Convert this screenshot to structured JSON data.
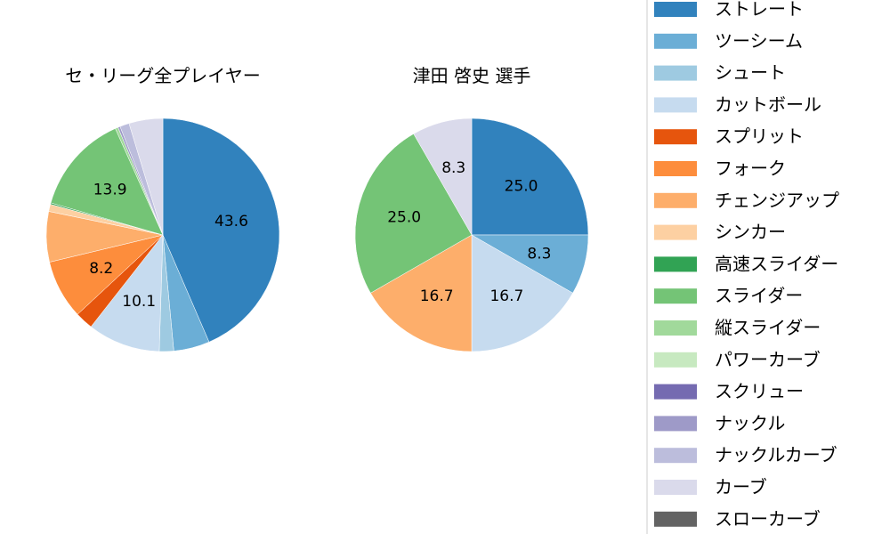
{
  "chart_data": [
    {
      "type": "pie",
      "title": "セ・リーグ全プレイヤー",
      "categories": [
        "ストレート",
        "ツーシーム",
        "シュート",
        "カットボール",
        "スプリット",
        "フォーク",
        "チェンジアップ",
        "シンカー",
        "高速スライダー",
        "スライダー",
        "縦スライダー",
        "パワーカーブ",
        "スクリュー",
        "ナックル",
        "ナックルカーブ",
        "カーブ",
        "スローカーブ"
      ],
      "values": [
        43.6,
        5.0,
        2.0,
        10.1,
        2.5,
        8.2,
        7.0,
        1.0,
        0.2,
        13.9,
        0.4,
        0,
        0,
        0.3,
        1.3,
        4.7,
        0
      ],
      "labels_shown": [
        "43.6",
        "",
        "",
        "10.1",
        "",
        "8.2",
        "",
        "",
        "",
        "13.9",
        "",
        "",
        "",
        "",
        "",
        "",
        ""
      ]
    },
    {
      "type": "pie",
      "title": "津田 啓史  選手",
      "categories": [
        "ストレート",
        "ツーシーム",
        "カットボール",
        "チェンジアップ",
        "スライダー",
        "カーブ"
      ],
      "values": [
        25.0,
        8.3,
        16.7,
        16.7,
        25.0,
        8.3
      ],
      "labels_shown": [
        "25.0",
        "8.3",
        "16.7",
        "16.7",
        "25.0",
        "8.3"
      ]
    }
  ],
  "legend": {
    "placement": "right",
    "items": [
      {
        "label": "ストレート",
        "color": "#3182bd"
      },
      {
        "label": "ツーシーム",
        "color": "#6baed6"
      },
      {
        "label": "シュート",
        "color": "#9ecae1"
      },
      {
        "label": "カットボール",
        "color": "#c6dbef"
      },
      {
        "label": "スプリット",
        "color": "#e6550d"
      },
      {
        "label": "フォーク",
        "color": "#fd8d3c"
      },
      {
        "label": "チェンジアップ",
        "color": "#fdae6b"
      },
      {
        "label": "シンカー",
        "color": "#fdd0a2"
      },
      {
        "label": "高速スライダー",
        "color": "#31a354"
      },
      {
        "label": "スライダー",
        "color": "#74c476"
      },
      {
        "label": "縦スライダー",
        "color": "#a1d99b"
      },
      {
        "label": "パワーカーブ",
        "color": "#c7e9c0"
      },
      {
        "label": "スクリュー",
        "color": "#756bb1"
      },
      {
        "label": "ナックル",
        "color": "#9e9ac8"
      },
      {
        "label": "ナックルカーブ",
        "color": "#bcbddc"
      },
      {
        "label": "カーブ",
        "color": "#dadaeb"
      },
      {
        "label": "スローカーブ",
        "color": "#636363"
      }
    ]
  }
}
